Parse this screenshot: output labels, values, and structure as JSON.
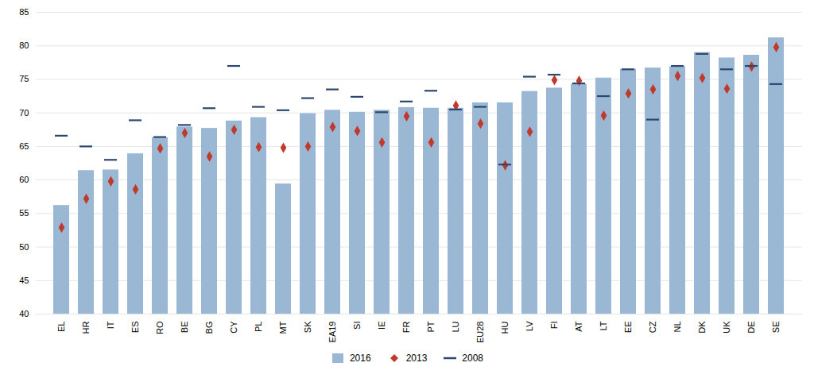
{
  "chart_data": {
    "type": "bar",
    "categories": [
      "EL",
      "HR",
      "IT",
      "ES",
      "RO",
      "BE",
      "BG",
      "CY",
      "PL",
      "MT",
      "SK",
      "EA19",
      "SI",
      "IE",
      "FR",
      "PT",
      "LU",
      "EU28",
      "HU",
      "LV",
      "FI",
      "AT",
      "LT",
      "EE",
      "CZ",
      "NL",
      "DK",
      "UK",
      "DE",
      "SE"
    ],
    "series": [
      {
        "name": "2016",
        "type": "bar",
        "color": "#9ab7d3",
        "values": [
          56.2,
          61.4,
          61.5,
          63.9,
          66.3,
          67.9,
          67.7,
          68.8,
          69.3,
          59.4,
          69.9,
          70.4,
          70.1,
          70.4,
          70.8,
          70.7,
          70.7,
          71.5,
          71.5,
          73.2,
          73.7,
          74.3,
          75.2,
          76.5,
          76.7,
          76.9,
          79.0,
          78.2,
          78.6,
          81.2
        ]
      },
      {
        "name": "2013",
        "type": "scatter",
        "marker": "diamond",
        "color": "#c0392b",
        "values": [
          52.9,
          57.2,
          59.8,
          58.6,
          64.7,
          67.0,
          63.5,
          67.5,
          64.9,
          64.8,
          65.0,
          67.9,
          67.3,
          65.6,
          69.5,
          65.6,
          71.1,
          68.4,
          62.2,
          67.2,
          74.9,
          74.8,
          69.6,
          72.9,
          73.5,
          75.5,
          75.2,
          73.6,
          76.9,
          79.8
        ]
      },
      {
        "name": "2008",
        "type": "tick",
        "color": "#2c4770",
        "values": [
          66.6,
          65.0,
          63.0,
          68.9,
          66.4,
          68.2,
          70.7,
          77.0,
          70.9,
          70.4,
          72.2,
          73.5,
          72.4,
          70.1,
          71.7,
          73.3,
          70.5,
          70.9,
          62.3,
          75.4,
          75.7,
          74.4,
          72.5,
          76.5,
          69.0,
          77.0,
          78.8,
          76.5,
          77.0,
          74.3
        ]
      }
    ],
    "ylim": [
      40,
      85
    ],
    "yticks": [
      40,
      45,
      50,
      55,
      60,
      65,
      70,
      75,
      80,
      85
    ],
    "grid": true,
    "legend": "bottom"
  }
}
